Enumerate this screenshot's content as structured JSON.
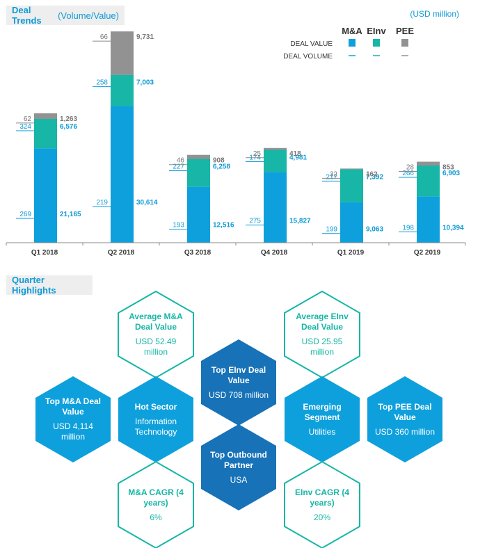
{
  "header": {
    "trends_title_bold": "Deal Trends",
    "trends_title_light": "(Volume/Value)",
    "unit": "(USD million)",
    "highlights_title": "Quarter Highlights"
  },
  "colors": {
    "ma": "#0ea0dc",
    "einv": "#17b6a6",
    "pee": "#929292",
    "ma_dark": "#1772b8",
    "accent_text": "#0e9ad6",
    "axis": "#888888"
  },
  "legend": {
    "series": [
      "M&A",
      "EInv",
      "PEE"
    ],
    "rows": [
      "DEAL VALUE",
      "DEAL VOLUME"
    ]
  },
  "chart_data": {
    "type": "bar",
    "stacked": true,
    "title": "Deal Trends",
    "subtitle": "(Volume/Value)",
    "unit": "(USD million)",
    "categories": [
      "Q1 2018",
      "Q2 2018",
      "Q3 2018",
      "Q4 2018",
      "Q1 2019",
      "Q2 2019"
    ],
    "series": [
      {
        "name": "M&A",
        "values": [
          21165,
          30614,
          12516,
          15827,
          9063,
          10394
        ],
        "volumes": [
          269,
          219,
          193,
          275,
          199,
          198
        ]
      },
      {
        "name": "EInv",
        "values": [
          6576,
          7003,
          6258,
          4981,
          7392,
          6903
        ],
        "volumes": [
          324,
          258,
          227,
          174,
          217,
          266
        ]
      },
      {
        "name": "PEE",
        "values": [
          1263,
          9731,
          908,
          418,
          162,
          853
        ],
        "volumes": [
          62,
          66,
          46,
          25,
          32,
          28
        ]
      }
    ],
    "value_labels": {
      "M&A": [
        "21,165",
        "30,614",
        "12,516",
        "15,827",
        "9,063",
        "10,394"
      ],
      "EInv": [
        "6,576",
        "7,003",
        "6,258",
        "4,981",
        "7,392",
        "6,903"
      ],
      "PEE": [
        "1,263",
        "9,731",
        "908",
        "418",
        "162",
        "853"
      ]
    },
    "ylim": [
      0,
      48000
    ],
    "grid": false,
    "legend_position": "top-right"
  },
  "highlights": [
    {
      "title": "Average M&A Deal Value",
      "value": "USD 52.49 million"
    },
    {
      "title": "Average EInv Deal Value",
      "value": "USD 25.95 million"
    },
    {
      "title": "Top EInv Deal Value",
      "value": "USD 708 million"
    },
    {
      "title": "Top M&A Deal Value",
      "value": "USD 4,114 million"
    },
    {
      "title": "Hot Sector",
      "value": "Information Technology"
    },
    {
      "title": "Emerging Segment",
      "value": "Utilities"
    },
    {
      "title": "Top PEE Deal Value",
      "value": "USD 360 million"
    },
    {
      "title": "Top Outbound Partner",
      "value": "USA"
    },
    {
      "title": "M&A CAGR (4 years)",
      "value": "6%"
    },
    {
      "title": "EInv CAGR (4 years)",
      "value": "20%"
    }
  ]
}
